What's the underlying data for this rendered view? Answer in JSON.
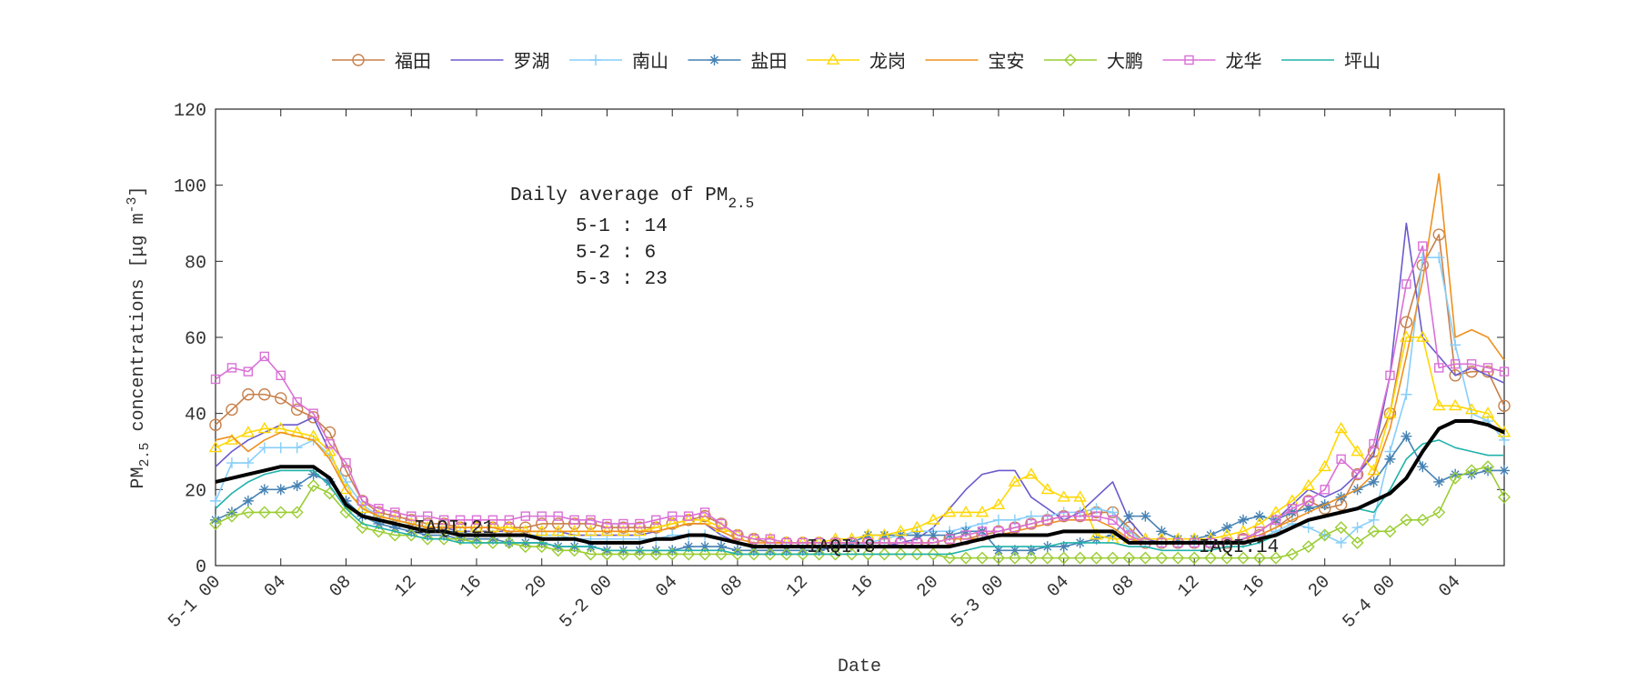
{
  "chart_data": {
    "type": "line",
    "x_label": "Date",
    "y_label_parts": [
      "PM",
      "2.5",
      " concentrations [",
      "μg m",
      "-3",
      "]"
    ],
    "annotation_title": "Daily average of PM",
    "annotation_title_sub": "2.5",
    "annotation_lines": [
      "5-1 : 14",
      "5-2 : 6",
      "5-3 : 23"
    ],
    "iaqi_labels": [
      "IAQI:21",
      "IAQI:8",
      "IAQI:14"
    ],
    "x": [
      0,
      1,
      2,
      3,
      4,
      5,
      6,
      7,
      8,
      9,
      10,
      11,
      12,
      13,
      14,
      15,
      16,
      17,
      18,
      19,
      20,
      21,
      22,
      23,
      24,
      25,
      26,
      27,
      28,
      29,
      30,
      31,
      32,
      33,
      34,
      35,
      36,
      37,
      38,
      39,
      40,
      41,
      42,
      43,
      44,
      45,
      46,
      47,
      48,
      49,
      50,
      51,
      52,
      53,
      54,
      55,
      56,
      57,
      58,
      59,
      60,
      61,
      62,
      63,
      64,
      65,
      66,
      67,
      68,
      69,
      70,
      71,
      72,
      73,
      74,
      75,
      76,
      77,
      78,
      79
    ],
    "xlim": [
      0,
      79
    ],
    "xticks": [
      {
        "value": 0,
        "label": "5-1 00"
      },
      {
        "value": 4,
        "label": "04"
      },
      {
        "value": 8,
        "label": "08"
      },
      {
        "value": 12,
        "label": "12"
      },
      {
        "value": 16,
        "label": "16"
      },
      {
        "value": 20,
        "label": "20"
      },
      {
        "value": 24,
        "label": "5-2 00"
      },
      {
        "value": 28,
        "label": "04"
      },
      {
        "value": 32,
        "label": "08"
      },
      {
        "value": 36,
        "label": "12"
      },
      {
        "value": 40,
        "label": "16"
      },
      {
        "value": 44,
        "label": "20"
      },
      {
        "value": 48,
        "label": "5-3 00"
      },
      {
        "value": 52,
        "label": "04"
      },
      {
        "value": 56,
        "label": "08"
      },
      {
        "value": 60,
        "label": "12"
      },
      {
        "value": 64,
        "label": "16"
      },
      {
        "value": 68,
        "label": "20"
      },
      {
        "value": 72,
        "label": "5-4 00"
      },
      {
        "value": 76,
        "label": "04"
      }
    ],
    "ylim": [
      0,
      120
    ],
    "yticks": [
      0,
      20,
      40,
      60,
      80,
      100,
      120
    ],
    "grid": false,
    "legend_position": "top",
    "series": [
      {
        "name": "福田",
        "color": "#c8804a",
        "marker": "circle",
        "values": [
          37,
          41,
          45,
          45,
          44,
          41,
          39,
          35,
          25,
          17,
          14,
          13,
          12,
          11,
          11,
          10,
          10,
          10,
          10,
          10,
          11,
          11,
          11,
          11,
          10,
          10,
          10,
          10,
          11,
          12,
          13,
          11,
          8,
          7,
          6,
          6,
          6,
          6,
          6,
          6,
          6,
          6,
          6,
          6,
          6,
          7,
          7,
          8,
          9,
          10,
          11,
          12,
          13,
          13,
          14,
          14,
          10,
          6,
          6,
          6,
          6,
          6,
          6,
          7,
          8,
          10,
          13,
          17,
          15,
          16,
          24,
          30,
          40,
          64,
          79,
          87,
          50,
          51,
          51,
          42
        ]
      },
      {
        "name": "罗湖",
        "color": "#6a5acd",
        "marker": "none",
        "values": [
          26,
          30,
          33,
          35,
          37,
          37,
          39,
          30,
          20,
          15,
          13,
          12,
          11,
          10,
          10,
          9,
          9,
          9,
          9,
          9,
          9,
          9,
          8,
          8,
          8,
          8,
          8,
          9,
          10,
          11,
          11,
          8,
          6,
          5,
          5,
          5,
          5,
          5,
          5,
          5,
          5,
          5,
          6,
          7,
          10,
          15,
          20,
          24,
          25,
          25,
          18,
          15,
          12,
          14,
          18,
          22,
          12,
          7,
          6,
          6,
          6,
          6,
          6,
          7,
          9,
          12,
          16,
          20,
          18,
          20,
          24,
          29,
          50,
          90,
          60,
          55,
          50,
          52,
          50,
          48
        ]
      },
      {
        "name": "南山",
        "color": "#87cefa",
        "marker": "plus",
        "values": [
          17,
          27,
          27,
          31,
          31,
          31,
          33,
          29,
          22,
          16,
          13,
          12,
          11,
          10,
          9,
          9,
          8,
          8,
          8,
          8,
          8,
          8,
          7,
          7,
          7,
          7,
          7,
          7,
          8,
          8,
          8,
          7,
          6,
          5,
          5,
          5,
          5,
          5,
          5,
          5,
          6,
          7,
          8,
          9,
          9,
          9,
          10,
          11,
          12,
          12,
          13,
          13,
          14,
          14,
          15,
          14,
          9,
          6,
          6,
          6,
          6,
          6,
          6,
          6,
          7,
          9,
          11,
          10,
          8,
          6,
          10,
          12,
          30,
          45,
          81,
          81,
          58,
          40,
          38,
          33
        ]
      },
      {
        "name": "盐田",
        "color": "#4682b4",
        "marker": "asterisk",
        "values": [
          12,
          14,
          17,
          20,
          20,
          21,
          24,
          22,
          17,
          13,
          11,
          10,
          9,
          8,
          8,
          7,
          7,
          7,
          6,
          6,
          6,
          5,
          5,
          5,
          4,
          4,
          4,
          4,
          4,
          5,
          5,
          5,
          4,
          4,
          4,
          4,
          4,
          4,
          5,
          6,
          8,
          8,
          8,
          8,
          8,
          8,
          9,
          9,
          4,
          4,
          4,
          5,
          5,
          6,
          7,
          8,
          13,
          13,
          9,
          7,
          7,
          8,
          10,
          12,
          13,
          12,
          14,
          15,
          16,
          18,
          20,
          22,
          28,
          34,
          26,
          22,
          24,
          24,
          25,
          25
        ]
      },
      {
        "name": "龙岗",
        "color": "#ffd700",
        "marker": "triangle",
        "values": [
          31,
          33,
          35,
          36,
          36,
          35,
          34,
          30,
          20,
          15,
          13,
          12,
          11,
          10,
          10,
          10,
          10,
          10,
          10,
          9,
          9,
          9,
          9,
          9,
          9,
          9,
          9,
          10,
          11,
          12,
          12,
          10,
          8,
          7,
          7,
          6,
          6,
          6,
          7,
          7,
          8,
          8,
          9,
          10,
          12,
          14,
          14,
          14,
          16,
          22,
          24,
          20,
          18,
          18,
          8,
          7,
          7,
          7,
          7,
          7,
          7,
          7,
          8,
          9,
          11,
          14,
          17,
          21,
          26,
          36,
          30,
          25,
          40,
          60,
          60,
          42,
          42,
          41,
          40,
          35
        ]
      },
      {
        "name": "宝安",
        "color": "#f0901e",
        "marker": "none",
        "values": [
          33,
          34,
          30,
          33,
          35,
          34,
          33,
          28,
          20,
          15,
          13,
          12,
          11,
          10,
          10,
          10,
          10,
          10,
          9,
          9,
          9,
          9,
          9,
          9,
          9,
          9,
          9,
          9,
          10,
          11,
          11,
          9,
          7,
          6,
          6,
          6,
          6,
          6,
          6,
          6,
          6,
          6,
          6,
          6,
          6,
          7,
          7,
          7,
          8,
          9,
          10,
          11,
          12,
          12,
          12,
          10,
          7,
          6,
          6,
          6,
          6,
          6,
          6,
          7,
          8,
          10,
          12,
          14,
          16,
          18,
          20,
          24,
          36,
          55,
          75,
          103,
          60,
          62,
          60,
          54
        ]
      },
      {
        "name": "大鹏",
        "color": "#9acd32",
        "marker": "diamond",
        "values": [
          11,
          13,
          14,
          14,
          14,
          14,
          21,
          19,
          14,
          10,
          9,
          8,
          8,
          7,
          7,
          7,
          6,
          6,
          6,
          5,
          5,
          4,
          4,
          3,
          3,
          3,
          3,
          3,
          3,
          3,
          3,
          3,
          3,
          3,
          3,
          3,
          3,
          3,
          3,
          3,
          3,
          3,
          3,
          3,
          3,
          2,
          2,
          2,
          2,
          2,
          2,
          2,
          2,
          2,
          2,
          2,
          2,
          2,
          2,
          2,
          2,
          2,
          2,
          2,
          2,
          2,
          3,
          5,
          8,
          10,
          6,
          9,
          9,
          12,
          12,
          14,
          23,
          25,
          26,
          18
        ]
      },
      {
        "name": "龙华",
        "color": "#da70d6",
        "marker": "square",
        "values": [
          49,
          52,
          51,
          55,
          50,
          43,
          40,
          32,
          27,
          17,
          15,
          14,
          13,
          13,
          12,
          12,
          12,
          12,
          12,
          13,
          13,
          13,
          12,
          12,
          11,
          11,
          11,
          12,
          13,
          13,
          14,
          11,
          8,
          7,
          7,
          6,
          6,
          6,
          6,
          6,
          6,
          6,
          6,
          6,
          6,
          7,
          8,
          9,
          9,
          10,
          11,
          12,
          13,
          13,
          13,
          12,
          8,
          6,
          6,
          6,
          6,
          6,
          6,
          7,
          9,
          12,
          15,
          17,
          20,
          28,
          24,
          32,
          50,
          74,
          84,
          52,
          53,
          53,
          52,
          51
        ]
      },
      {
        "name": "坪山",
        "color": "#20b2aa",
        "marker": "none",
        "values": [
          15,
          19,
          22,
          24,
          25,
          25,
          25,
          21,
          15,
          11,
          10,
          9,
          8,
          7,
          7,
          6,
          6,
          6,
          6,
          6,
          6,
          5,
          5,
          5,
          4,
          4,
          4,
          4,
          4,
          4,
          4,
          4,
          3,
          3,
          3,
          3,
          3,
          3,
          3,
          3,
          3,
          3,
          3,
          3,
          3,
          3,
          4,
          5,
          5,
          5,
          5,
          5,
          6,
          6,
          6,
          6,
          5,
          5,
          4,
          4,
          4,
          4,
          5,
          5,
          6,
          8,
          10,
          12,
          13,
          14,
          15,
          14,
          20,
          28,
          32,
          33,
          31,
          30,
          29,
          29
        ]
      }
    ],
    "average_line": {
      "color": "#000000",
      "values": [
        22,
        23,
        24,
        25,
        26,
        26,
        26,
        23,
        16,
        13,
        12,
        11,
        10,
        9,
        9,
        8,
        8,
        8,
        8,
        8,
        7,
        7,
        7,
        6,
        6,
        6,
        6,
        7,
        7,
        8,
        8,
        7,
        6,
        5,
        5,
        5,
        5,
        5,
        5,
        5,
        5,
        5,
        5,
        5,
        5,
        5,
        6,
        7,
        8,
        8,
        8,
        8,
        9,
        9,
        9,
        9,
        6,
        6,
        6,
        6,
        6,
        6,
        6,
        6,
        7,
        8,
        10,
        12,
        13,
        14,
        15,
        17,
        19,
        23,
        30,
        36,
        38,
        38,
        37,
        35
      ]
    }
  }
}
